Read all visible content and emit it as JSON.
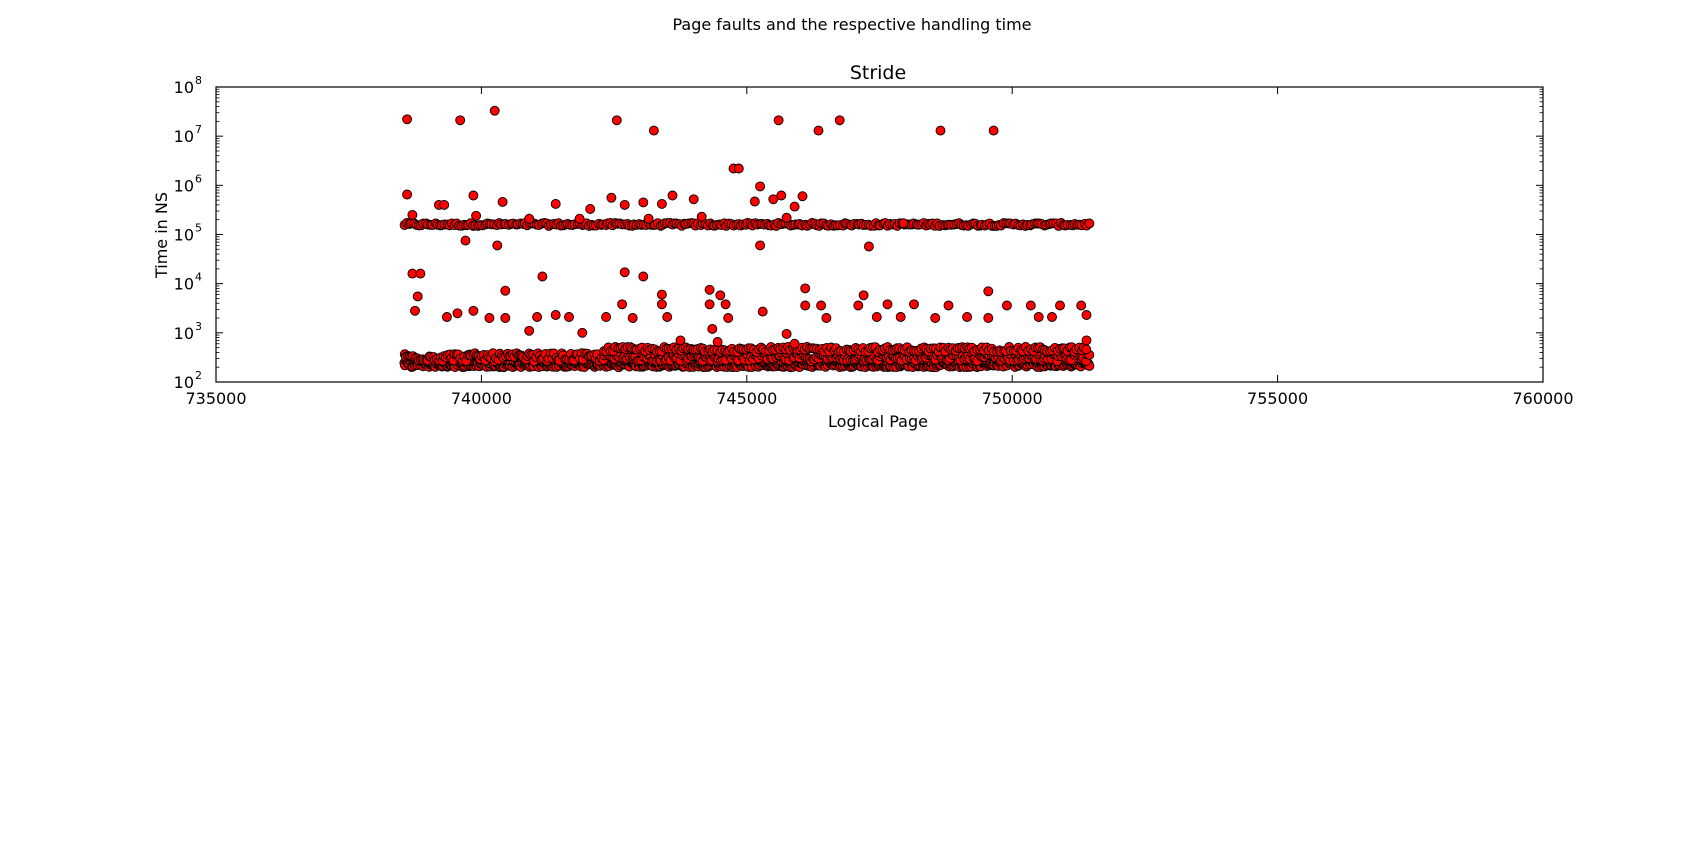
{
  "figure": {
    "suptitle": "Page faults and the respective handling time"
  },
  "chart_data": {
    "type": "scatter",
    "title": "Stride",
    "xlabel": "Logical Page",
    "ylabel": "Time in NS",
    "xlim": [
      735000,
      760000
    ],
    "ylim": [
      100,
      100000000
    ],
    "yscale": "log",
    "x_ticks": [
      "735000",
      "740000",
      "745000",
      "750000",
      "755000",
      "760000"
    ],
    "y_ticks": [
      {
        "base": "10",
        "exp": "2"
      },
      {
        "base": "10",
        "exp": "3"
      },
      {
        "base": "10",
        "exp": "4"
      },
      {
        "base": "10",
        "exp": "5"
      },
      {
        "base": "10",
        "exp": "6"
      },
      {
        "base": "10",
        "exp": "7"
      },
      {
        "base": "10",
        "exp": "8"
      }
    ],
    "grid": false,
    "marker_color": "#ff0000",
    "marker_edge_color": "#000000",
    "series": [
      {
        "points": [
          [
            738600,
            22000000
          ],
          [
            739600,
            21000000
          ],
          [
            740250,
            33000000
          ],
          [
            742550,
            21000000
          ],
          [
            743250,
            13000000
          ],
          [
            745600,
            21000000
          ],
          [
            746350,
            13000000
          ],
          [
            746750,
            21000000
          ],
          [
            748650,
            13000000
          ],
          [
            749650,
            13000000
          ],
          [
            744750,
            2200000
          ],
          [
            744850,
            2200000
          ],
          [
            745250,
            950000
          ],
          [
            738600,
            650000
          ],
          [
            739850,
            620000
          ],
          [
            740400,
            460000
          ],
          [
            741400,
            420000
          ],
          [
            743600,
            620000
          ],
          [
            744000,
            520000
          ],
          [
            745150,
            470000
          ],
          [
            745500,
            520000
          ],
          [
            745650,
            620000
          ],
          [
            745900,
            370000
          ],
          [
            746050,
            600000
          ],
          [
            739200,
            400000
          ],
          [
            739300,
            400000
          ],
          [
            742050,
            330000
          ],
          [
            742700,
            400000
          ],
          [
            743050,
            450000
          ],
          [
            743400,
            420000
          ],
          [
            738700,
            250000
          ],
          [
            739900,
            240000
          ],
          [
            740900,
            210000
          ],
          [
            742450,
            560000
          ],
          [
            741850,
            210000
          ],
          [
            743150,
            210000
          ],
          [
            744150,
            230000
          ],
          [
            745750,
            220000
          ],
          [
            747950,
            170000
          ],
          [
            739700,
            75000
          ],
          [
            740300,
            60000
          ],
          [
            745250,
            60000
          ],
          [
            747300,
            57000
          ],
          [
            738700,
            16000
          ],
          [
            738850,
            16000
          ],
          [
            742700,
            17000
          ],
          [
            743050,
            14000
          ],
          [
            741150,
            14000
          ],
          [
            740450,
            7200
          ],
          [
            743400,
            6000
          ],
          [
            744300,
            7500
          ],
          [
            744500,
            5800
          ],
          [
            746100,
            8000
          ],
          [
            747200,
            5800
          ],
          [
            749550,
            7000
          ],
          [
            738800,
            5500
          ],
          [
            746100,
            3600
          ],
          [
            746400,
            3600
          ],
          [
            747100,
            3600
          ],
          [
            748800,
            3600
          ],
          [
            749900,
            3600
          ],
          [
            750350,
            3600
          ],
          [
            750900,
            3600
          ],
          [
            751300,
            3600
          ],
          [
            742650,
            3800
          ],
          [
            743400,
            3800
          ],
          [
            744300,
            3800
          ],
          [
            744600,
            3800
          ],
          [
            748150,
            3800
          ],
          [
            747650,
            3800
          ],
          [
            738750,
            2800
          ],
          [
            739350,
            2100
          ],
          [
            739550,
            2500
          ],
          [
            739850,
            2800
          ],
          [
            740150,
            2000
          ],
          [
            740450,
            2000
          ],
          [
            741050,
            2100
          ],
          [
            741400,
            2300
          ],
          [
            741650,
            2100
          ],
          [
            742350,
            2100
          ],
          [
            742850,
            2000
          ],
          [
            743500,
            2100
          ],
          [
            744650,
            2000
          ],
          [
            745300,
            2700
          ],
          [
            746500,
            2000
          ],
          [
            747450,
            2100
          ],
          [
            747900,
            2100
          ],
          [
            748550,
            2000
          ],
          [
            749150,
            2100
          ],
          [
            749550,
            2000
          ],
          [
            750500,
            2100
          ],
          [
            750750,
            2100
          ],
          [
            751400,
            2300
          ],
          [
            740900,
            1100
          ],
          [
            741900,
            1000
          ],
          [
            744350,
            1200
          ],
          [
            745750,
            950
          ],
          [
            743750,
            700
          ],
          [
            744450,
            650
          ],
          [
            745900,
            600
          ],
          [
            751400,
            700
          ]
        ],
        "bands": [
          {
            "x_start": 738550,
            "x_end": 751450,
            "y_center": 160000,
            "spread_dex": 0.03,
            "count": 290
          },
          {
            "x_start": 738550,
            "x_end": 751450,
            "y_center": 230,
            "spread_dex": 0.06,
            "count": 700
          },
          {
            "x_start": 738550,
            "x_end": 751450,
            "y_center": 320,
            "spread_dex": 0.08,
            "count": 380
          },
          {
            "x_start": 742300,
            "x_end": 751400,
            "y_center": 460,
            "spread_dex": 0.05,
            "count": 200
          }
        ]
      }
    ]
  }
}
